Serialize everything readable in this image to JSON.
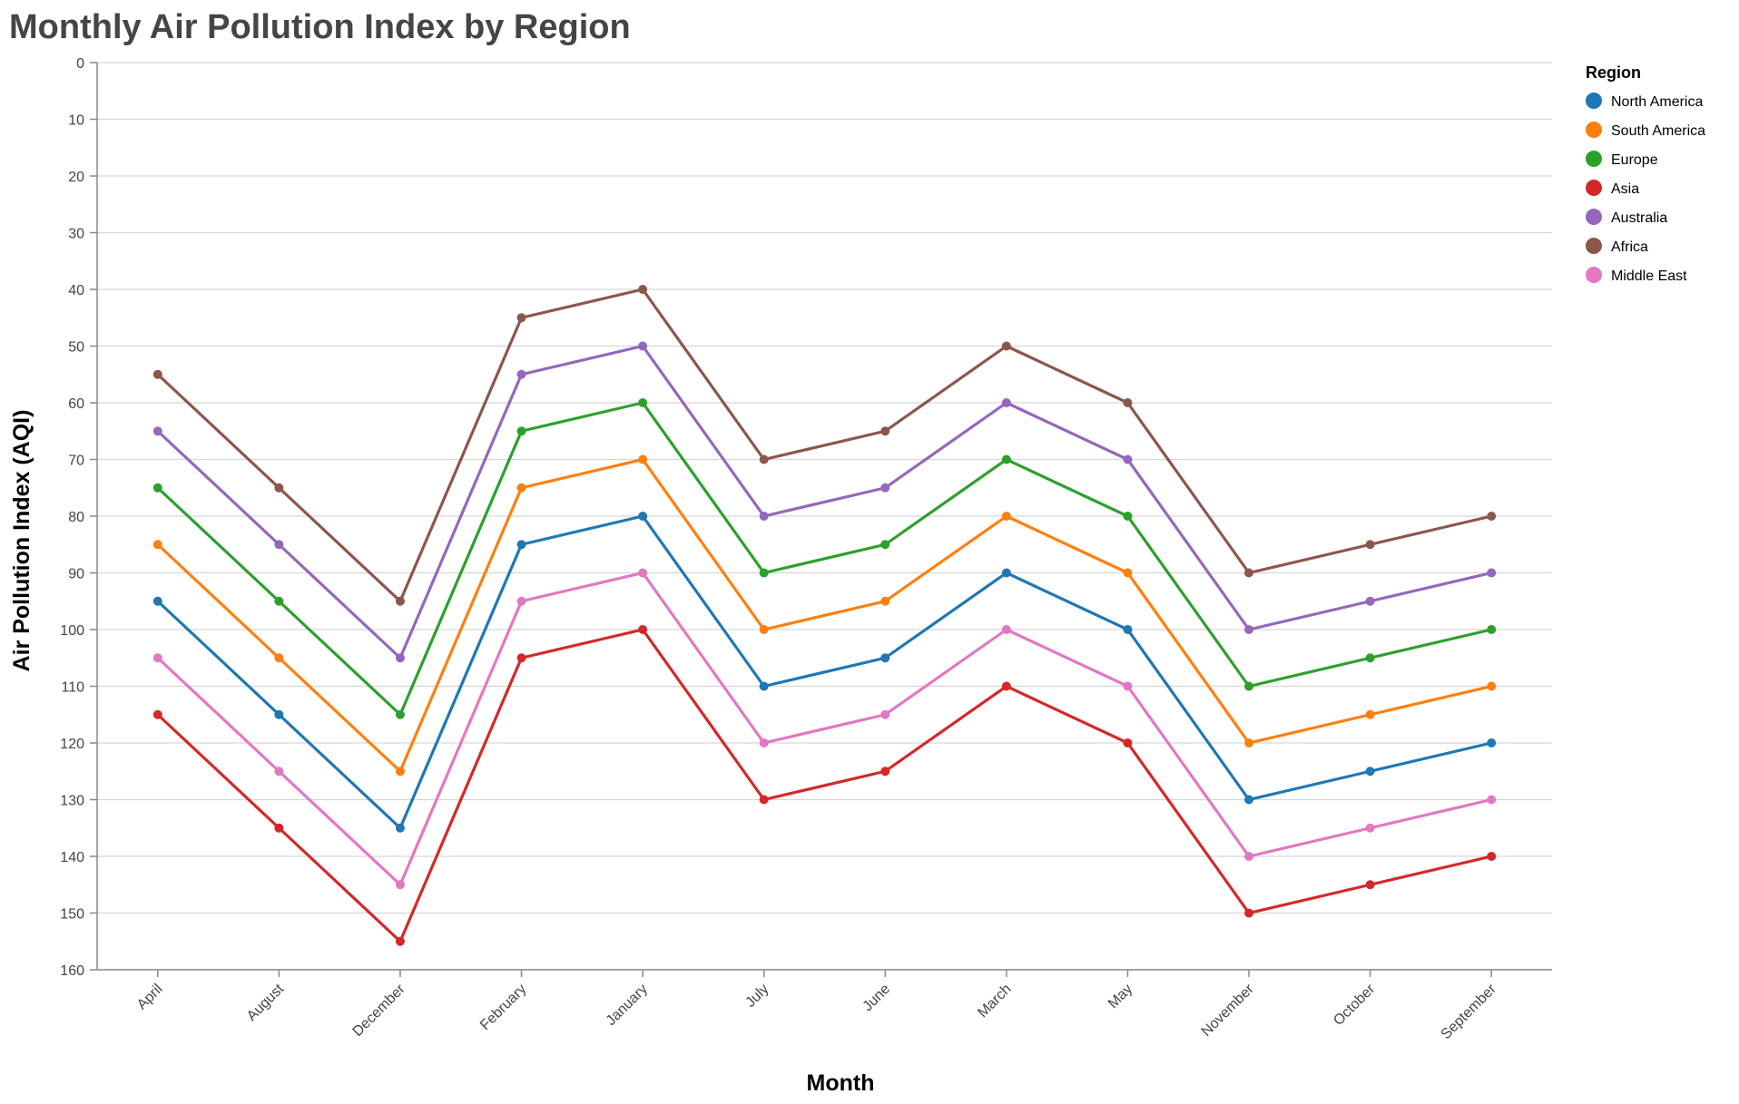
{
  "chart_data": {
    "type": "line",
    "title": "Monthly Air Pollution Index by Region",
    "xlabel": "Month",
    "ylabel": "Air Pollution Index (AQI)",
    "ylim": [
      0,
      160
    ],
    "y_reversed": true,
    "y_ticks": [
      0,
      10,
      20,
      30,
      40,
      50,
      60,
      70,
      80,
      90,
      100,
      110,
      120,
      130,
      140,
      150,
      160
    ],
    "grid": true,
    "legend": {
      "title": "Region",
      "placement": "top-right"
    },
    "categories": [
      "April",
      "August",
      "December",
      "February",
      "January",
      "July",
      "June",
      "March",
      "May",
      "November",
      "October",
      "September"
    ],
    "series": [
      {
        "name": "North America",
        "color": "#1f77b4",
        "values": [
          95,
          115,
          135,
          85,
          80,
          110,
          105,
          90,
          100,
          130,
          125,
          120
        ]
      },
      {
        "name": "South America",
        "color": "#ff7f0e",
        "values": [
          85,
          105,
          125,
          75,
          70,
          100,
          95,
          80,
          90,
          120,
          115,
          110
        ]
      },
      {
        "name": "Europe",
        "color": "#2ca02c",
        "values": [
          75,
          95,
          115,
          65,
          60,
          90,
          85,
          70,
          80,
          110,
          105,
          100
        ]
      },
      {
        "name": "Asia",
        "color": "#d62728",
        "values": [
          115,
          135,
          155,
          105,
          100,
          130,
          125,
          110,
          120,
          150,
          145,
          140
        ]
      },
      {
        "name": "Australia",
        "color": "#9467bd",
        "values": [
          65,
          85,
          105,
          55,
          50,
          80,
          75,
          60,
          70,
          100,
          95,
          90
        ]
      },
      {
        "name": "Africa",
        "color": "#8c564b",
        "values": [
          55,
          75,
          95,
          45,
          40,
          70,
          65,
          50,
          60,
          90,
          85,
          80
        ]
      },
      {
        "name": "Middle East",
        "color": "#e377c2",
        "values": [
          105,
          125,
          145,
          95,
          90,
          120,
          115,
          100,
          110,
          140,
          135,
          130
        ]
      }
    ]
  }
}
